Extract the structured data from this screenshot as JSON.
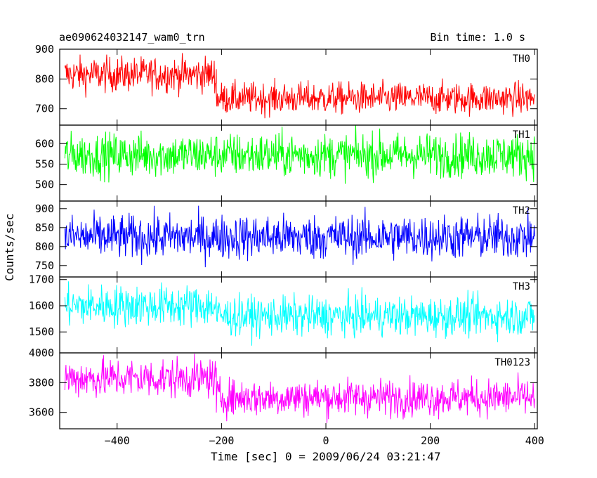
{
  "chart_data": {
    "type": "line",
    "title": "ae090624032147_wam0_trn",
    "subtitle": "Bin time: 1.0 s",
    "xlabel": "Time [sec] 0 = 2009/06/24 03:21:47",
    "ylabel": "Counts/sec",
    "xlim": [
      -510,
      405
    ],
    "x_ticks": [
      -400,
      -200,
      0,
      200,
      400
    ],
    "x_tick_labels": [
      "−400",
      "−200",
      "0",
      "200",
      "400"
    ],
    "x_range": [
      -500,
      400
    ],
    "panels": [
      {
        "name": "TH0",
        "color": "#ff0000",
        "ylim": [
          645,
          900
        ],
        "yticks": [
          700,
          800,
          900
        ],
        "segments": [
          {
            "x": [
              -500,
              -210
            ],
            "mean": 815,
            "amp": 33
          },
          {
            "x": [
              -210,
              400
            ],
            "mean": 735,
            "amp": 30
          }
        ]
      },
      {
        "name": "TH1",
        "color": "#00ff00",
        "ylim": [
          460,
          645
        ],
        "yticks": [
          500,
          550,
          600
        ],
        "segments": [
          {
            "x": [
              -500,
              400
            ],
            "mean": 572,
            "amp": 30
          }
        ]
      },
      {
        "name": "TH2",
        "color": "#0000ff",
        "ylim": [
          720,
          920
        ],
        "yticks": [
          750,
          800,
          850,
          900
        ],
        "segments": [
          {
            "x": [
              -500,
              400
            ],
            "mean": 825,
            "amp": 33
          }
        ]
      },
      {
        "name": "TH3",
        "color": "#00ffff",
        "ylim": [
          1420,
          1710
        ],
        "yticks": [
          1500,
          1600,
          1700
        ],
        "segments": [
          {
            "x": [
              -500,
              -210
            ],
            "mean": 1600,
            "amp": 45
          },
          {
            "x": [
              -210,
              400
            ],
            "mean": 1560,
            "amp": 42
          }
        ]
      },
      {
        "name": "TH0123",
        "color": "#ff00ff",
        "ylim": [
          3490,
          4000
        ],
        "yticks": [
          3600,
          3800,
          4000
        ],
        "ytick_labels": [
          "3600",
          "3800",
          "4000"
        ],
        "segments": [
          {
            "x": [
              -500,
              -210
            ],
            "mean": 3830,
            "amp": 75
          },
          {
            "x": [
              -210,
              400
            ],
            "mean": 3700,
            "amp": 70
          }
        ]
      }
    ]
  }
}
